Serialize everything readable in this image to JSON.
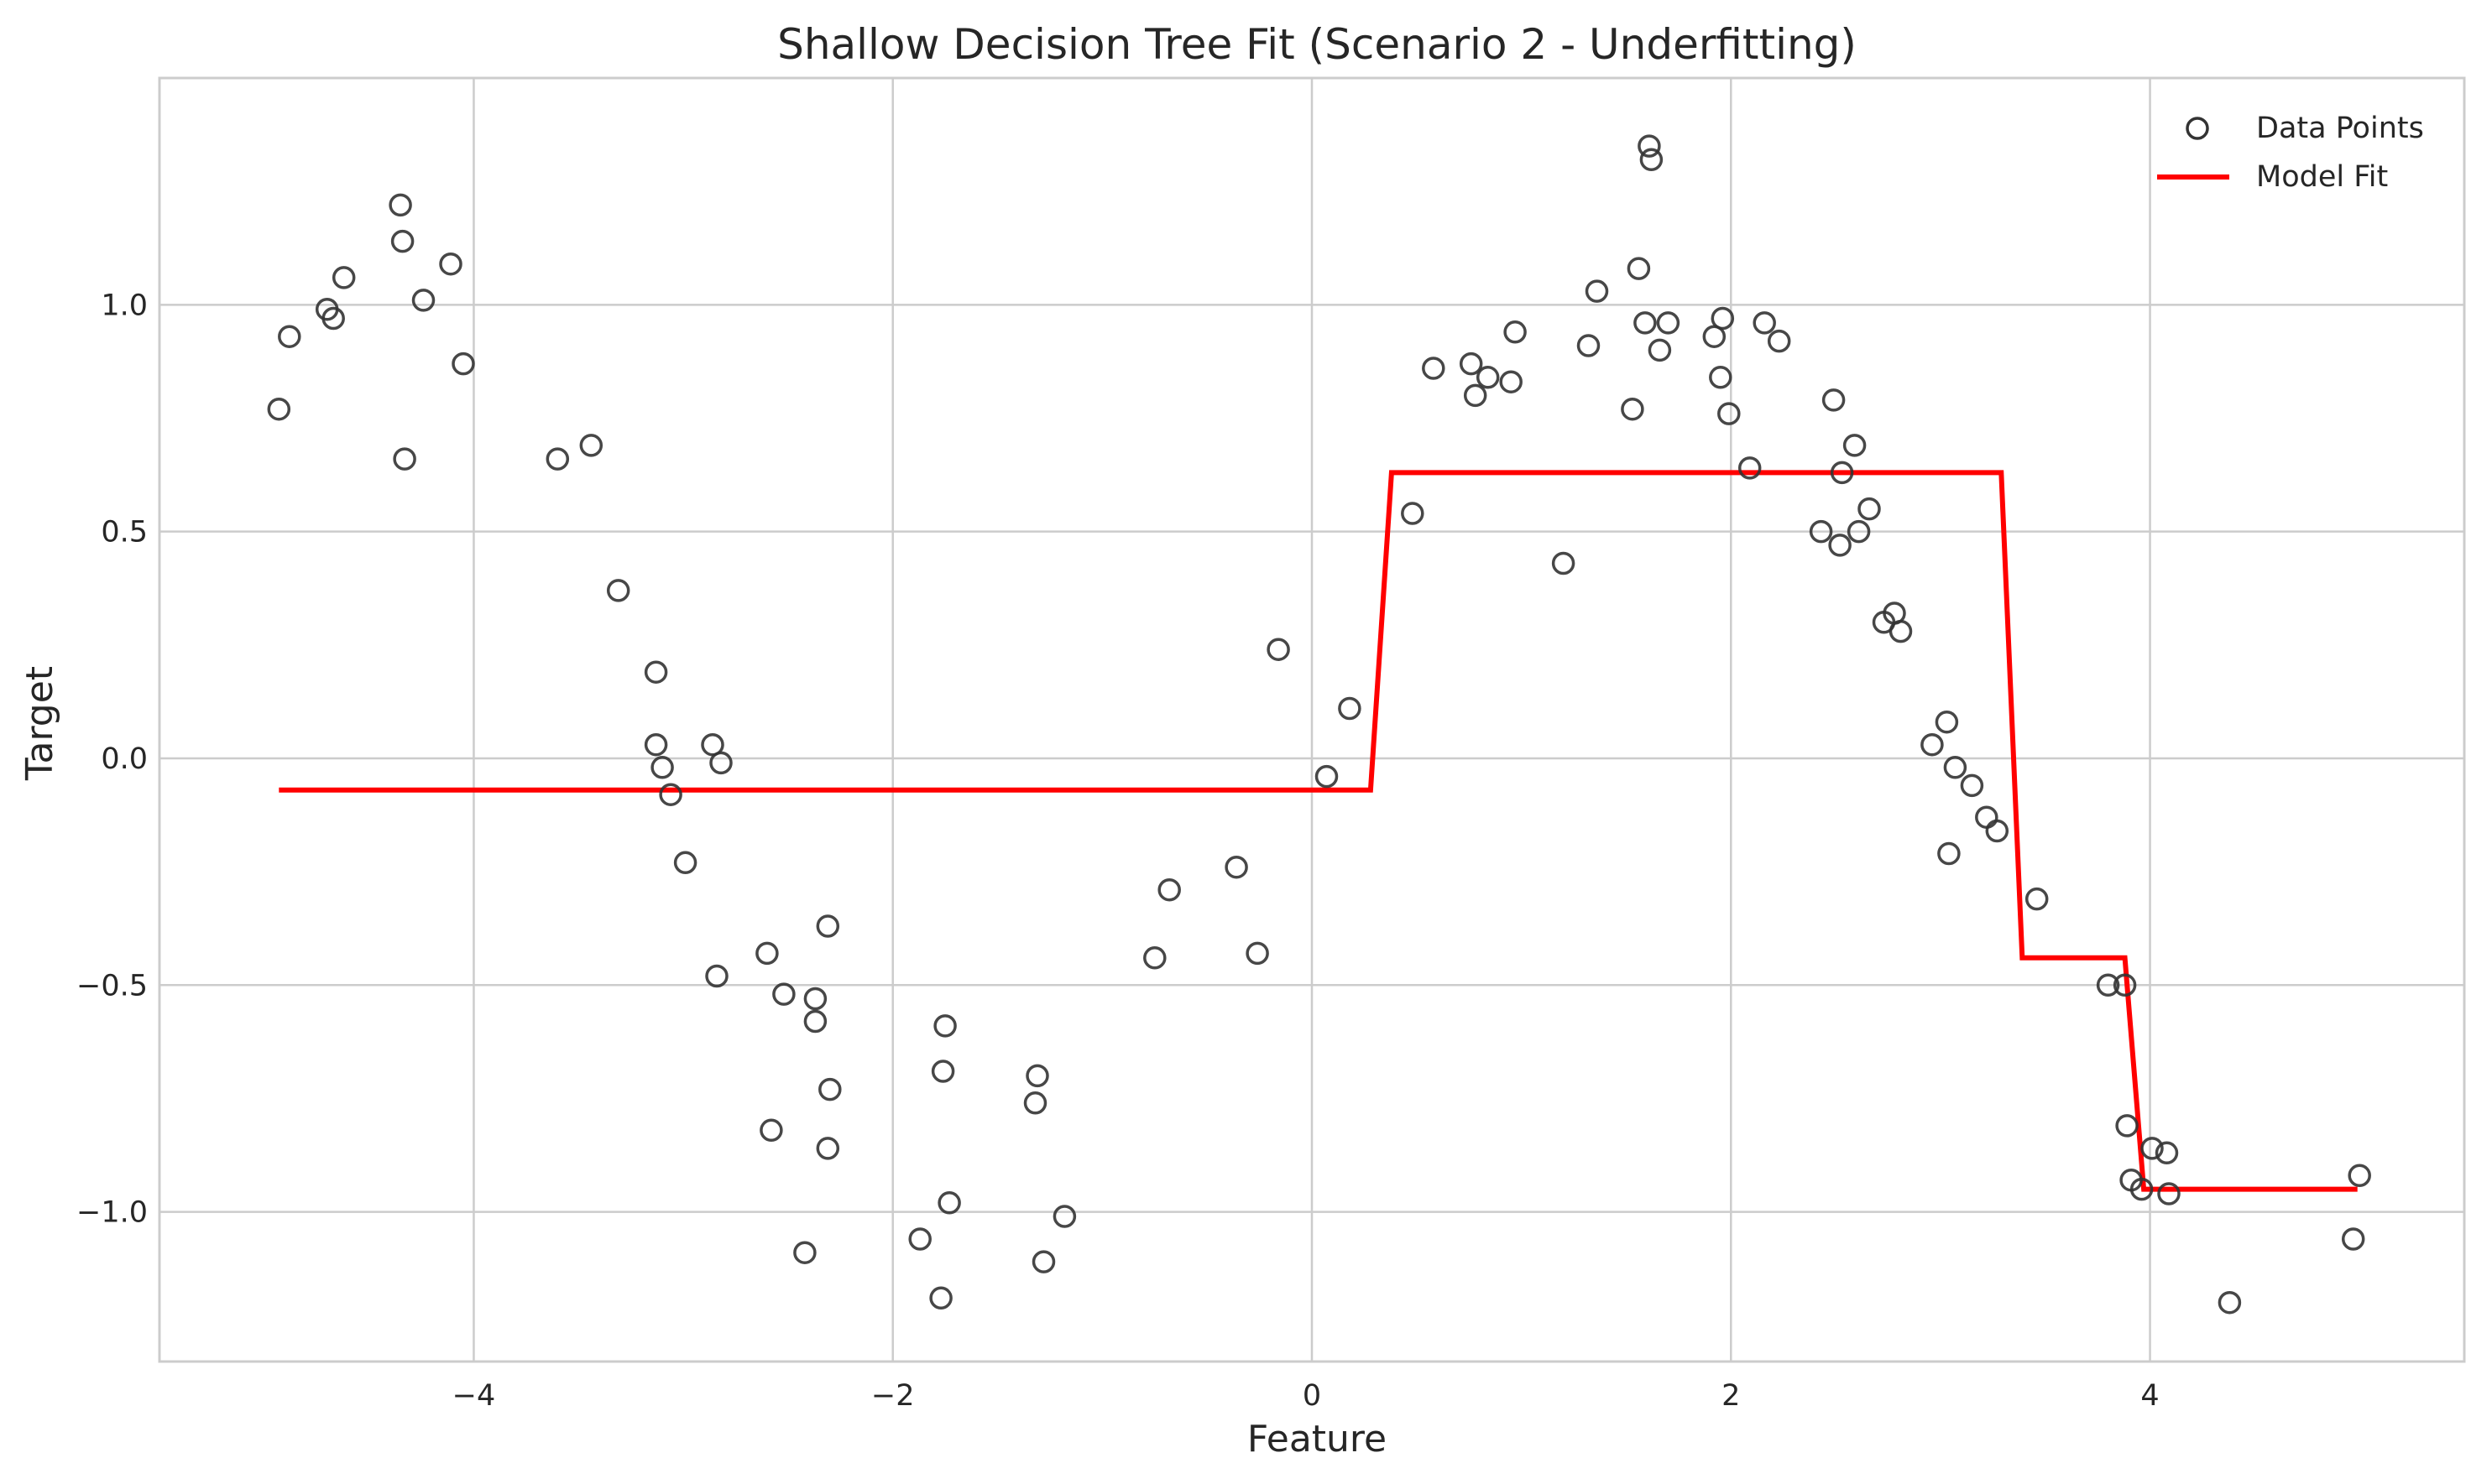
{
  "chart_data": {
    "type": "scatter",
    "title": "Shallow Decision Tree Fit (Scenario 2 - Underfitting)",
    "xlabel": "Feature",
    "ylabel": "Target",
    "xlim": [
      -5.5,
      5.5
    ],
    "ylim": [
      -1.33,
      1.5
    ],
    "x_ticks": [
      -4,
      -2,
      0,
      2,
      4
    ],
    "y_ticks": [
      -1.0,
      -0.5,
      0.0,
      0.5,
      1.0
    ],
    "x_tick_labels": [
      "−4",
      "−2",
      "0",
      "2",
      "4"
    ],
    "y_tick_labels": [
      "−1.0",
      "−0.5",
      "0.0",
      "0.5",
      "1.0"
    ],
    "grid": true,
    "legend_position": "top-right",
    "colors": {
      "points": "#333333",
      "fit": "#ff0000",
      "grid": "#cccccc",
      "frame": "#cccccc"
    },
    "series": [
      {
        "name": "Data Points",
        "kind": "scatter",
        "points": [
          [
            -4.93,
            0.77
          ],
          [
            -4.88,
            0.93
          ],
          [
            -4.7,
            0.99
          ],
          [
            -4.67,
            0.97
          ],
          [
            -4.62,
            1.06
          ],
          [
            -4.35,
            1.22
          ],
          [
            -4.34,
            1.14
          ],
          [
            -4.33,
            0.66
          ],
          [
            -4.24,
            1.01
          ],
          [
            -4.11,
            1.09
          ],
          [
            -4.05,
            0.87
          ],
          [
            -3.6,
            0.66
          ],
          [
            -3.44,
            0.69
          ],
          [
            -3.31,
            0.37
          ],
          [
            -3.13,
            0.19
          ],
          [
            -3.13,
            0.03
          ],
          [
            -3.1,
            -0.02
          ],
          [
            -3.06,
            -0.08
          ],
          [
            -2.99,
            -0.23
          ],
          [
            -2.86,
            0.03
          ],
          [
            -2.84,
            -0.48
          ],
          [
            -2.82,
            -0.01
          ],
          [
            -2.6,
            -0.43
          ],
          [
            -2.58,
            -0.82
          ],
          [
            -2.52,
            -0.52
          ],
          [
            -2.42,
            -1.09
          ],
          [
            -2.37,
            -0.53
          ],
          [
            -2.37,
            -0.58
          ],
          [
            -2.31,
            -0.37
          ],
          [
            -2.31,
            -0.86
          ],
          [
            -2.3,
            -0.73
          ],
          [
            -1.87,
            -1.06
          ],
          [
            -1.77,
            -1.19
          ],
          [
            -1.76,
            -0.69
          ],
          [
            -1.75,
            -0.59
          ],
          [
            -1.73,
            -0.98
          ],
          [
            -1.32,
            -0.76
          ],
          [
            -1.31,
            -0.7
          ],
          [
            -1.28,
            -1.11
          ],
          [
            -1.18,
            -1.01
          ],
          [
            -0.75,
            -0.44
          ],
          [
            -0.68,
            -0.29
          ],
          [
            -0.36,
            -0.24
          ],
          [
            -0.26,
            -0.43
          ],
          [
            -0.16,
            0.24
          ],
          [
            0.07,
            -0.04
          ],
          [
            0.18,
            0.11
          ],
          [
            0.48,
            0.54
          ],
          [
            0.58,
            0.86
          ],
          [
            0.76,
            0.87
          ],
          [
            0.78,
            0.8
          ],
          [
            0.84,
            0.84
          ],
          [
            0.95,
            0.83
          ],
          [
            0.97,
            0.94
          ],
          [
            1.2,
            0.43
          ],
          [
            1.32,
            0.91
          ],
          [
            1.36,
            1.03
          ],
          [
            1.53,
            0.77
          ],
          [
            1.56,
            1.08
          ],
          [
            1.59,
            0.96
          ],
          [
            1.61,
            1.35
          ],
          [
            1.62,
            1.32
          ],
          [
            1.66,
            0.9
          ],
          [
            1.7,
            0.96
          ],
          [
            1.92,
            0.93
          ],
          [
            1.95,
            0.84
          ],
          [
            1.96,
            0.97
          ],
          [
            1.99,
            0.76
          ],
          [
            2.09,
            0.64
          ],
          [
            2.16,
            0.96
          ],
          [
            2.23,
            0.92
          ],
          [
            2.43,
            0.5
          ],
          [
            2.49,
            0.79
          ],
          [
            2.52,
            0.47
          ],
          [
            2.53,
            0.63
          ],
          [
            2.59,
            0.69
          ],
          [
            2.61,
            0.5
          ],
          [
            2.66,
            0.55
          ],
          [
            2.73,
            0.3
          ],
          [
            2.78,
            0.32
          ],
          [
            2.81,
            0.28
          ],
          [
            2.96,
            0.03
          ],
          [
            3.03,
            0.08
          ],
          [
            3.04,
            -0.21
          ],
          [
            3.07,
            -0.02
          ],
          [
            3.15,
            -0.06
          ],
          [
            3.22,
            -0.13
          ],
          [
            3.27,
            -0.16
          ],
          [
            3.46,
            -0.31
          ],
          [
            3.8,
            -0.5
          ],
          [
            3.88,
            -0.5
          ],
          [
            3.89,
            -0.81
          ],
          [
            3.91,
            -0.93
          ],
          [
            3.96,
            -0.95
          ],
          [
            4.01,
            -0.86
          ],
          [
            4.08,
            -0.87
          ],
          [
            4.09,
            -0.96
          ],
          [
            4.38,
            -1.2
          ],
          [
            4.97,
            -1.06
          ],
          [
            5.0,
            -0.92
          ]
        ]
      },
      {
        "name": "Model Fit",
        "kind": "line",
        "points": [
          [
            -4.93,
            -0.07
          ],
          [
            0.28,
            -0.07
          ],
          [
            0.38,
            0.63
          ],
          [
            3.29,
            0.63
          ],
          [
            3.39,
            -0.44
          ],
          [
            3.88,
            -0.44
          ],
          [
            3.97,
            -0.95
          ],
          [
            4.99,
            -0.95
          ]
        ]
      }
    ]
  }
}
